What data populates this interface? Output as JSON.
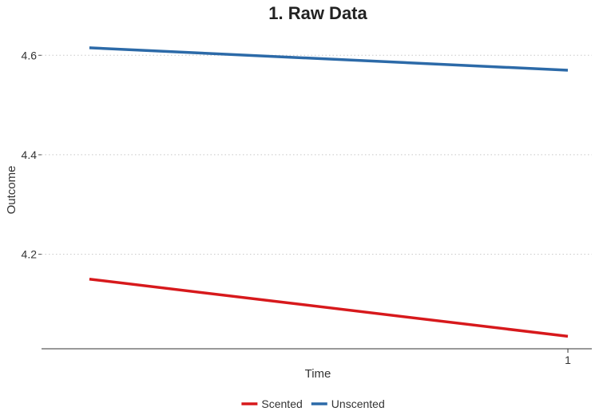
{
  "chart_data": {
    "type": "line",
    "title": "1. Raw Data",
    "xlabel": "Time",
    "ylabel": "Outcome",
    "x": [
      0,
      1
    ],
    "x_tick_values": [
      1
    ],
    "x_tick_labels": [
      "1"
    ],
    "xlim": [
      -0.1,
      1.05
    ],
    "ylim": [
      4.01,
      4.655
    ],
    "y_ticks": [
      4.2,
      4.4,
      4.6
    ],
    "y_tick_labels": [
      "4.2",
      "4.4",
      "4.6"
    ],
    "grid": "horizontal-dotted",
    "legend_position": "bottom",
    "series": [
      {
        "name": "Scented",
        "values": [
          4.15,
          4.035
        ],
        "color": "#d7191c"
      },
      {
        "name": "Unscented",
        "values": [
          4.615,
          4.57
        ],
        "color": "#2c6aa8"
      }
    ]
  }
}
